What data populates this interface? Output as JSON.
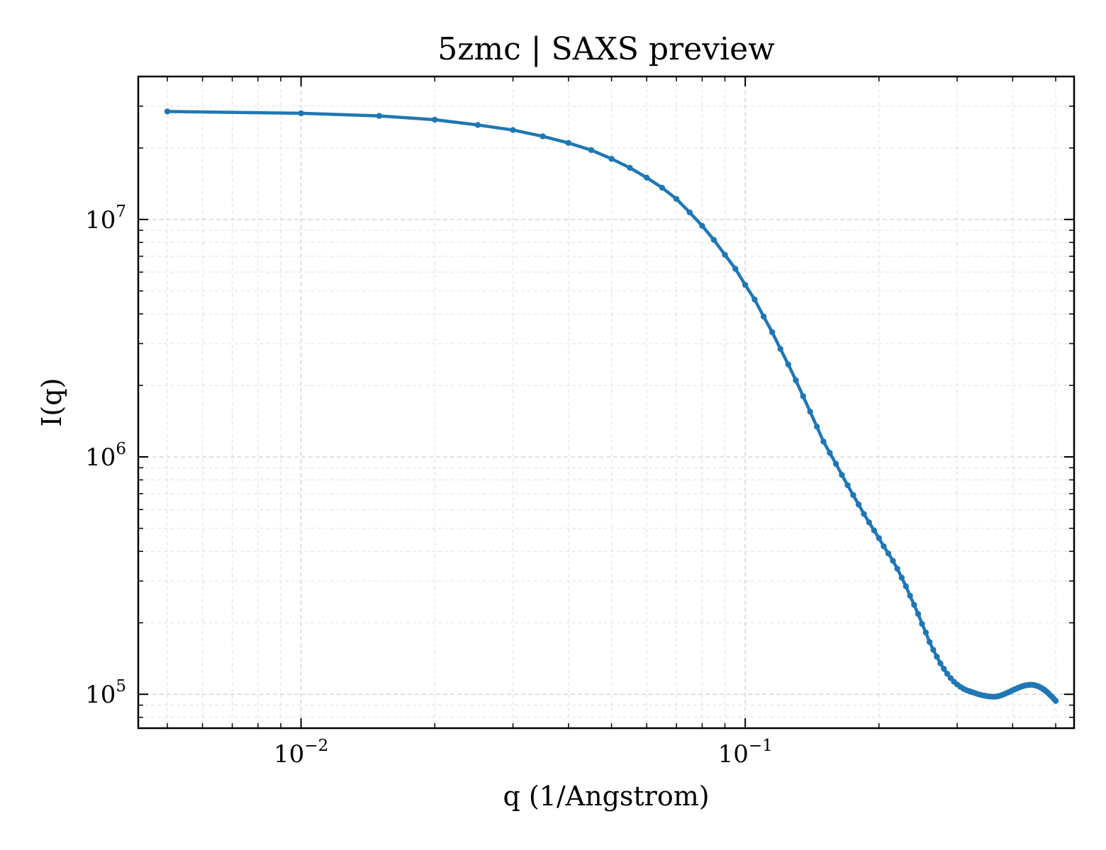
{
  "chart_data": {
    "type": "line",
    "title": "5zmc | SAXS preview",
    "xlabel": "q (1/Angstrom)",
    "ylabel": "I(q)",
    "xscale": "log",
    "yscale": "log",
    "xlim": [
      0.0043,
      0.55
    ],
    "ylim": [
      72000,
      40000000
    ],
    "grid": true,
    "x_ticks": [
      {
        "base": "10",
        "exp": "−2",
        "value": 0.01
      },
      {
        "base": "10",
        "exp": "−1",
        "value": 0.1
      }
    ],
    "y_ticks": [
      {
        "base": "10",
        "exp": "5",
        "value": 100000
      },
      {
        "base": "10",
        "exp": "6",
        "value": 1000000
      },
      {
        "base": "10",
        "exp": "7",
        "value": 10000000
      }
    ],
    "color": "#1f77b4",
    "marker": "circle",
    "series": [
      {
        "x": [
          0.005,
          0.01,
          0.015,
          0.02,
          0.025,
          0.03,
          0.035,
          0.04,
          0.045,
          0.05,
          0.055,
          0.06,
          0.065,
          0.07,
          0.075,
          0.08,
          0.085,
          0.09,
          0.095,
          0.1,
          0.105,
          0.11,
          0.115,
          0.12,
          0.125,
          0.13,
          0.135,
          0.14,
          0.145,
          0.15,
          0.155,
          0.16,
          0.165,
          0.17,
          0.175,
          0.18,
          0.185,
          0.19,
          0.195,
          0.2,
          0.205,
          0.21,
          0.215,
          0.22,
          0.225,
          0.23,
          0.235,
          0.24,
          0.245,
          0.25,
          0.255,
          0.26,
          0.265,
          0.27,
          0.275,
          0.28,
          0.285,
          0.29,
          0.295,
          0.3,
          0.305,
          0.31,
          0.315,
          0.32,
          0.325,
          0.33,
          0.335,
          0.34,
          0.345,
          0.35,
          0.355,
          0.36,
          0.365,
          0.37,
          0.375,
          0.38,
          0.385,
          0.39,
          0.395,
          0.4,
          0.405,
          0.41,
          0.415,
          0.42,
          0.425,
          0.43,
          0.435,
          0.44,
          0.445,
          0.45,
          0.455,
          0.46,
          0.465,
          0.47,
          0.475,
          0.48,
          0.485,
          0.49,
          0.495,
          0.5
        ],
        "y": [
          28500000,
          28000000,
          27300000,
          26300000,
          25000000,
          23800000,
          22400000,
          21000000,
          19600000,
          18000000,
          16500000,
          15000000,
          13600000,
          12200000,
          10700000,
          9400000,
          8200000,
          7100000,
          6200000,
          5300000,
          4600000,
          3900000,
          3350000,
          2850000,
          2450000,
          2100000,
          1800000,
          1550000,
          1340000,
          1160000,
          1040000,
          935000,
          840000,
          760000,
          690000,
          630000,
          575000,
          530000,
          490000,
          455000,
          420000,
          392000,
          365000,
          338000,
          310000,
          285000,
          260000,
          238000,
          218000,
          198000,
          182000,
          166000,
          154000,
          144000,
          135000,
          128000,
          122000,
          117000,
          113000,
          110000,
          107500,
          105500,
          104000,
          103000,
          102000,
          101000,
          100000,
          99300,
          98700,
          98200,
          97900,
          97700,
          97700,
          98000,
          98700,
          99600,
          100600,
          101700,
          102800,
          104000,
          105100,
          106100,
          107100,
          108000,
          108700,
          109200,
          109500,
          109700,
          109500,
          109000,
          108300,
          107400,
          106200,
          104800,
          103200,
          101500,
          99600,
          97700,
          95800,
          93800
        ]
      }
    ]
  }
}
